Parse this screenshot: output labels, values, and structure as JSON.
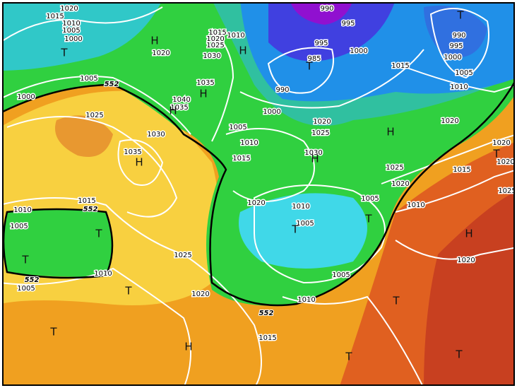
{
  "isobar_labels": [
    "1020",
    "1015",
    "1010",
    "1005",
    "1000",
    "1005",
    "1000",
    "1025",
    "1035",
    "1015",
    "1010",
    "1005",
    "1010",
    "1005",
    "1025",
    "1020",
    "1015",
    "1020",
    "1025",
    "1030",
    "1010",
    "1020",
    "1035",
    "1040",
    "1035",
    "1030",
    "990",
    "995",
    "995",
    "985",
    "1000",
    "990",
    "1000",
    "1005",
    "1010",
    "1015",
    "1020",
    "1025",
    "1030",
    "990",
    "995",
    "1000",
    "1005",
    "1010",
    "1015",
    "1020",
    "1025",
    "1020",
    "1015",
    "1010",
    "1005",
    "1010",
    "1005",
    "1005",
    "1010",
    "1015",
    "1020",
    "1020",
    "1025",
    "1020",
    "1020"
  ],
  "thickness_labels": [
    "552",
    "552",
    "552",
    "552"
  ],
  "pressure_centers": [
    "T",
    "H",
    "H",
    "H",
    "H",
    "H",
    "H",
    "H",
    "T",
    "T",
    "T",
    "T",
    "T",
    "T",
    "H",
    "T",
    "T",
    "H",
    "T",
    "T",
    "T",
    "T"
  ]
}
